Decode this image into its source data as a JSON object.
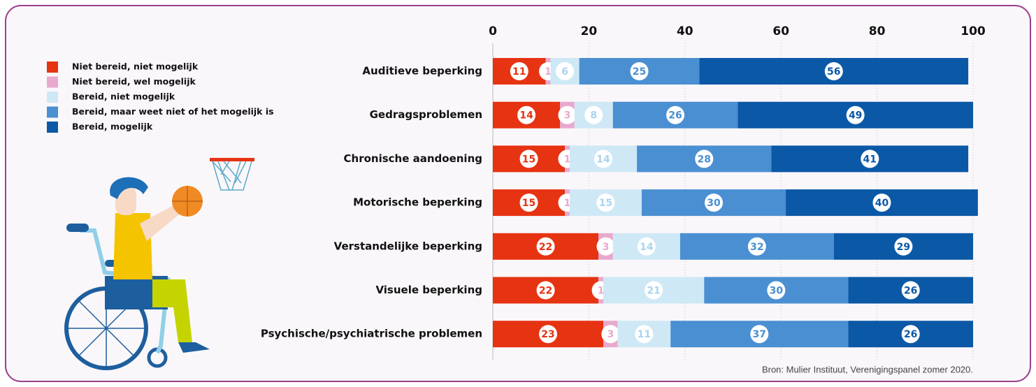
{
  "chart_data": {
    "type": "bar",
    "orientation": "horizontal",
    "stacked": true,
    "categories": [
      "Auditieve beperking",
      "Gedragsproblemen",
      "Chronische aandoening",
      "Motorische beperking",
      "Verstandelijke beperking",
      "Visuele beperking",
      "Psychische/psychiatrische problemen"
    ],
    "series": [
      {
        "name": "Niet bereid, niet mogelijk",
        "color": "#e63312",
        "label_color": "#e63312",
        "values": [
          11,
          14,
          15,
          15,
          22,
          22,
          23
        ]
      },
      {
        "name": "Niet bereid, wel mogelijk",
        "color": "#e8a9cd",
        "label_color": "#e8a9cd",
        "values": [
          1,
          3,
          1,
          1,
          3,
          1,
          3
        ]
      },
      {
        "name": "Bereid, niet mogelijk",
        "color": "#cfe8f6",
        "label_color": "#a9d4ee",
        "values": [
          6,
          8,
          14,
          15,
          14,
          21,
          11
        ]
      },
      {
        "name": "Bereid, maar weet niet of het mogelijk is",
        "color": "#4a8fd2",
        "label_color": "#4a8fd2",
        "values": [
          25,
          26,
          28,
          30,
          32,
          30,
          37
        ]
      },
      {
        "name": "Bereid, mogelijk",
        "color": "#0b58a6",
        "label_color": "#0b58a6",
        "values": [
          56,
          49,
          41,
          40,
          29,
          26,
          26
        ]
      }
    ],
    "xlim": [
      0,
      100
    ],
    "xticks": [
      0,
      20,
      40,
      60,
      80,
      100
    ],
    "grid": true,
    "legend": "top-left",
    "source": "Bron: Mulier Instituut, Verenigingspanel zomer 2020."
  }
}
